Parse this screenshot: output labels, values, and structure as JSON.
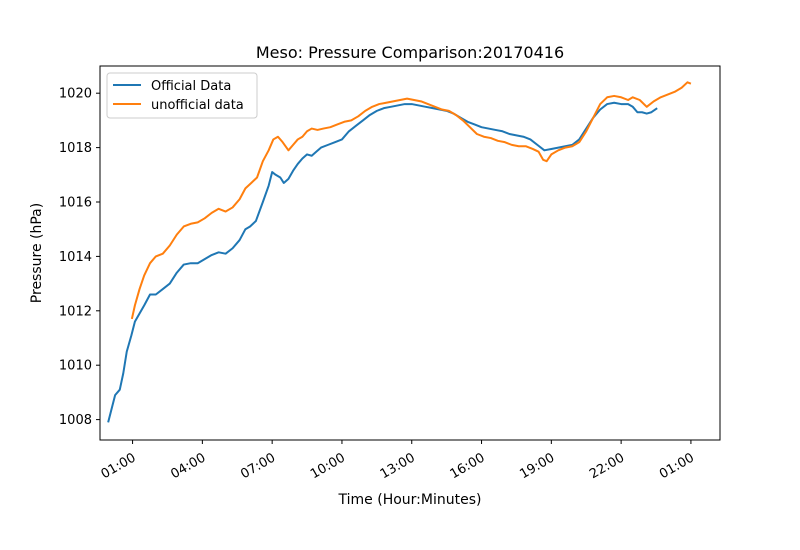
{
  "chart_data": {
    "type": "line",
    "title": "Meso: Pressure Comparison:20170416",
    "xlabel": "Time (Hour:Minutes)",
    "ylabel": "Pressure (hPa)",
    "x_unit": "hours since midnight",
    "x_ticks": [
      {
        "value": 25,
        "label": "01:00"
      },
      {
        "value": 28,
        "label": "04:00"
      },
      {
        "value": 31,
        "label": "07:00"
      },
      {
        "value": 34,
        "label": "10:00"
      },
      {
        "value": 37,
        "label": "13:00"
      },
      {
        "value": 40,
        "label": "16:00"
      },
      {
        "value": 43,
        "label": "19:00"
      },
      {
        "value": 46,
        "label": "22:00"
      },
      {
        "value": 49,
        "label": "01:00"
      }
    ],
    "y_ticks": [
      1008,
      1010,
      1012,
      1014,
      1016,
      1018,
      1020
    ],
    "xlim": [
      23.6,
      50.25
    ],
    "ylim": [
      1007.25,
      1021.0
    ],
    "grid": false,
    "legend": "top-left",
    "series": [
      {
        "name": "Official Data",
        "color": "#1f77b4",
        "points": [
          [
            23.95,
            1007.9
          ],
          [
            24.1,
            1008.4
          ],
          [
            24.25,
            1008.9
          ],
          [
            24.45,
            1009.1
          ],
          [
            24.6,
            1009.7
          ],
          [
            24.75,
            1010.5
          ],
          [
            24.95,
            1011.1
          ],
          [
            25.1,
            1011.6
          ],
          [
            25.3,
            1011.9
          ],
          [
            25.5,
            1012.2
          ],
          [
            25.75,
            1012.6
          ],
          [
            26.0,
            1012.6
          ],
          [
            26.3,
            1012.8
          ],
          [
            26.6,
            1013.0
          ],
          [
            26.9,
            1013.4
          ],
          [
            27.2,
            1013.7
          ],
          [
            27.5,
            1013.75
          ],
          [
            27.8,
            1013.75
          ],
          [
            28.1,
            1013.9
          ],
          [
            28.4,
            1014.05
          ],
          [
            28.7,
            1014.15
          ],
          [
            29.0,
            1014.1
          ],
          [
            29.3,
            1014.3
          ],
          [
            29.6,
            1014.6
          ],
          [
            29.85,
            1015.0
          ],
          [
            30.05,
            1015.1
          ],
          [
            30.3,
            1015.3
          ],
          [
            30.6,
            1016.0
          ],
          [
            30.85,
            1016.6
          ],
          [
            31.0,
            1017.1
          ],
          [
            31.15,
            1017.0
          ],
          [
            31.35,
            1016.9
          ],
          [
            31.5,
            1016.7
          ],
          [
            31.7,
            1016.85
          ],
          [
            31.9,
            1017.15
          ],
          [
            32.1,
            1017.4
          ],
          [
            32.3,
            1017.6
          ],
          [
            32.5,
            1017.75
          ],
          [
            32.7,
            1017.7
          ],
          [
            32.9,
            1017.85
          ],
          [
            33.1,
            1018.0
          ],
          [
            33.4,
            1018.1
          ],
          [
            33.7,
            1018.2
          ],
          [
            34.0,
            1018.3
          ],
          [
            34.3,
            1018.6
          ],
          [
            34.6,
            1018.8
          ],
          [
            34.9,
            1019.0
          ],
          [
            35.2,
            1019.2
          ],
          [
            35.5,
            1019.35
          ],
          [
            35.8,
            1019.45
          ],
          [
            36.1,
            1019.5
          ],
          [
            36.4,
            1019.55
          ],
          [
            36.7,
            1019.6
          ],
          [
            37.0,
            1019.6
          ],
          [
            37.3,
            1019.55
          ],
          [
            37.6,
            1019.5
          ],
          [
            37.9,
            1019.45
          ],
          [
            38.2,
            1019.4
          ],
          [
            38.5,
            1019.35
          ],
          [
            38.8,
            1019.25
          ],
          [
            39.1,
            1019.1
          ],
          [
            39.4,
            1018.95
          ],
          [
            39.7,
            1018.85
          ],
          [
            40.0,
            1018.75
          ],
          [
            40.3,
            1018.7
          ],
          [
            40.6,
            1018.65
          ],
          [
            40.9,
            1018.6
          ],
          [
            41.2,
            1018.5
          ],
          [
            41.5,
            1018.45
          ],
          [
            41.8,
            1018.4
          ],
          [
            42.1,
            1018.3
          ],
          [
            42.4,
            1018.1
          ],
          [
            42.7,
            1017.9
          ],
          [
            43.0,
            1017.95
          ],
          [
            43.3,
            1018.0
          ],
          [
            43.6,
            1018.05
          ],
          [
            43.9,
            1018.1
          ],
          [
            44.2,
            1018.3
          ],
          [
            44.5,
            1018.7
          ],
          [
            44.8,
            1019.1
          ],
          [
            45.1,
            1019.4
          ],
          [
            45.4,
            1019.6
          ],
          [
            45.7,
            1019.65
          ],
          [
            46.0,
            1019.6
          ],
          [
            46.3,
            1019.6
          ],
          [
            46.5,
            1019.5
          ],
          [
            46.7,
            1019.3
          ],
          [
            46.9,
            1019.3
          ],
          [
            47.1,
            1019.25
          ],
          [
            47.3,
            1019.3
          ],
          [
            47.55,
            1019.45
          ]
        ]
      },
      {
        "name": "unofficial data",
        "color": "#ff7f0e",
        "points": [
          [
            24.97,
            1011.7
          ],
          [
            25.1,
            1012.2
          ],
          [
            25.3,
            1012.8
          ],
          [
            25.5,
            1013.3
          ],
          [
            25.75,
            1013.75
          ],
          [
            26.0,
            1014.0
          ],
          [
            26.3,
            1014.1
          ],
          [
            26.6,
            1014.4
          ],
          [
            26.9,
            1014.8
          ],
          [
            27.2,
            1015.1
          ],
          [
            27.5,
            1015.2
          ],
          [
            27.8,
            1015.25
          ],
          [
            28.1,
            1015.4
          ],
          [
            28.4,
            1015.6
          ],
          [
            28.7,
            1015.75
          ],
          [
            29.0,
            1015.65
          ],
          [
            29.3,
            1015.8
          ],
          [
            29.6,
            1016.1
          ],
          [
            29.85,
            1016.5
          ],
          [
            30.1,
            1016.7
          ],
          [
            30.35,
            1016.9
          ],
          [
            30.6,
            1017.5
          ],
          [
            30.85,
            1017.9
          ],
          [
            31.05,
            1018.3
          ],
          [
            31.25,
            1018.4
          ],
          [
            31.45,
            1018.2
          ],
          [
            31.7,
            1017.9
          ],
          [
            31.9,
            1018.1
          ],
          [
            32.1,
            1018.3
          ],
          [
            32.3,
            1018.4
          ],
          [
            32.5,
            1018.6
          ],
          [
            32.7,
            1018.7
          ],
          [
            32.95,
            1018.65
          ],
          [
            33.2,
            1018.7
          ],
          [
            33.5,
            1018.75
          ],
          [
            33.8,
            1018.85
          ],
          [
            34.1,
            1018.95
          ],
          [
            34.4,
            1019.0
          ],
          [
            34.7,
            1019.15
          ],
          [
            35.0,
            1019.35
          ],
          [
            35.3,
            1019.5
          ],
          [
            35.6,
            1019.6
          ],
          [
            35.9,
            1019.65
          ],
          [
            36.2,
            1019.7
          ],
          [
            36.5,
            1019.75
          ],
          [
            36.8,
            1019.8
          ],
          [
            37.1,
            1019.75
          ],
          [
            37.4,
            1019.7
          ],
          [
            37.7,
            1019.6
          ],
          [
            38.0,
            1019.5
          ],
          [
            38.3,
            1019.4
          ],
          [
            38.6,
            1019.35
          ],
          [
            38.9,
            1019.2
          ],
          [
            39.2,
            1019.0
          ],
          [
            39.5,
            1018.75
          ],
          [
            39.8,
            1018.5
          ],
          [
            40.1,
            1018.4
          ],
          [
            40.4,
            1018.35
          ],
          [
            40.7,
            1018.25
          ],
          [
            41.0,
            1018.2
          ],
          [
            41.3,
            1018.1
          ],
          [
            41.6,
            1018.05
          ],
          [
            41.9,
            1018.05
          ],
          [
            42.2,
            1017.95
          ],
          [
            42.45,
            1017.85
          ],
          [
            42.65,
            1017.55
          ],
          [
            42.8,
            1017.5
          ],
          [
            43.0,
            1017.75
          ],
          [
            43.3,
            1017.9
          ],
          [
            43.6,
            1018.0
          ],
          [
            43.9,
            1018.05
          ],
          [
            44.2,
            1018.2
          ],
          [
            44.5,
            1018.6
          ],
          [
            44.8,
            1019.1
          ],
          [
            45.1,
            1019.6
          ],
          [
            45.4,
            1019.85
          ],
          [
            45.7,
            1019.9
          ],
          [
            46.0,
            1019.85
          ],
          [
            46.3,
            1019.75
          ],
          [
            46.5,
            1019.85
          ],
          [
            46.8,
            1019.75
          ],
          [
            47.1,
            1019.5
          ],
          [
            47.4,
            1019.7
          ],
          [
            47.7,
            1019.85
          ],
          [
            48.0,
            1019.95
          ],
          [
            48.3,
            1020.05
          ],
          [
            48.6,
            1020.2
          ],
          [
            48.85,
            1020.4
          ],
          [
            49.0,
            1020.35
          ]
        ]
      }
    ]
  }
}
